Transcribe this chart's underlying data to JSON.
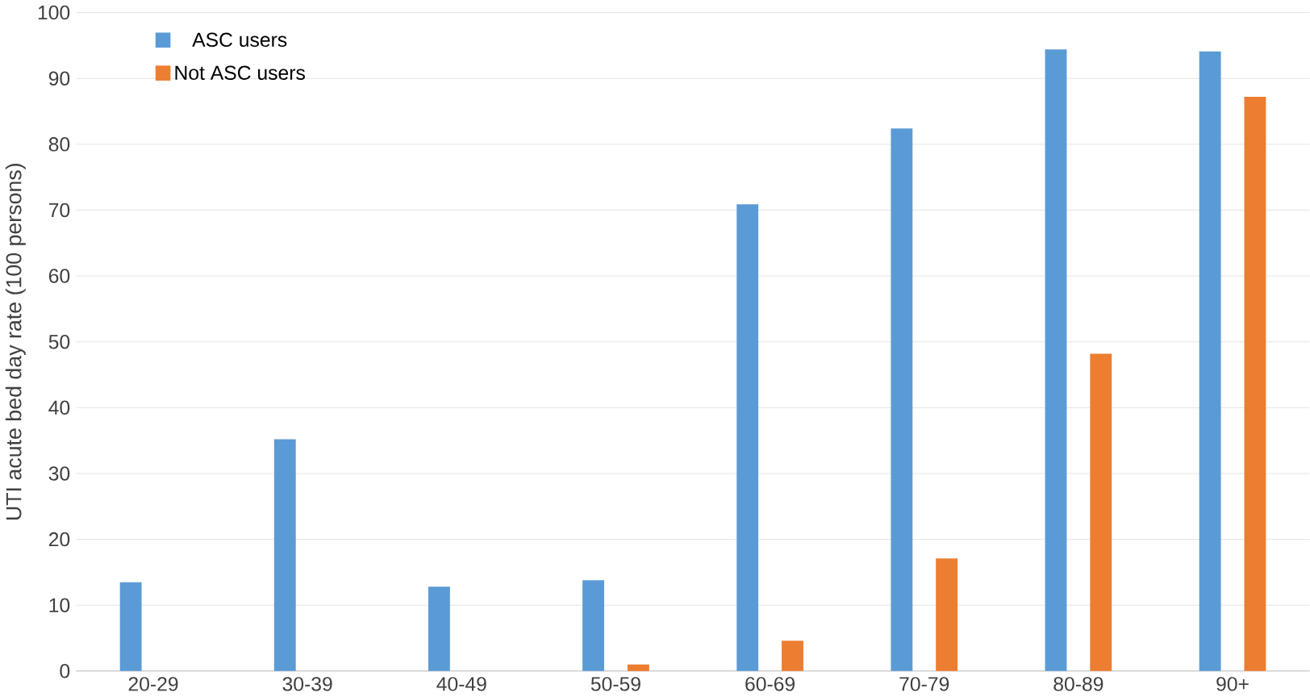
{
  "chart_data": {
    "type": "bar",
    "ylabel": "UTI acute bed day rate (100 persons)",
    "categories": [
      "20-29",
      "30-39",
      "40-49",
      "50-59",
      "60-69",
      "70-79",
      "80-89",
      "90+"
    ],
    "series": [
      {
        "name": "ASC users",
        "color": "#5b9bd5",
        "values": [
          13.5,
          35.2,
          12.8,
          13.8,
          70.9,
          82.4,
          94.4,
          94.1
        ]
      },
      {
        "name": "Not ASC users",
        "color": "#ed7d31",
        "values": [
          null,
          null,
          null,
          1.0,
          4.6,
          17.1,
          48.2,
          87.2
        ]
      }
    ],
    "ylim": [
      0,
      100
    ],
    "yticks": [
      0,
      10,
      20,
      30,
      40,
      50,
      60,
      70,
      80,
      90,
      100
    ],
    "grid": "y",
    "legend": "top left"
  }
}
